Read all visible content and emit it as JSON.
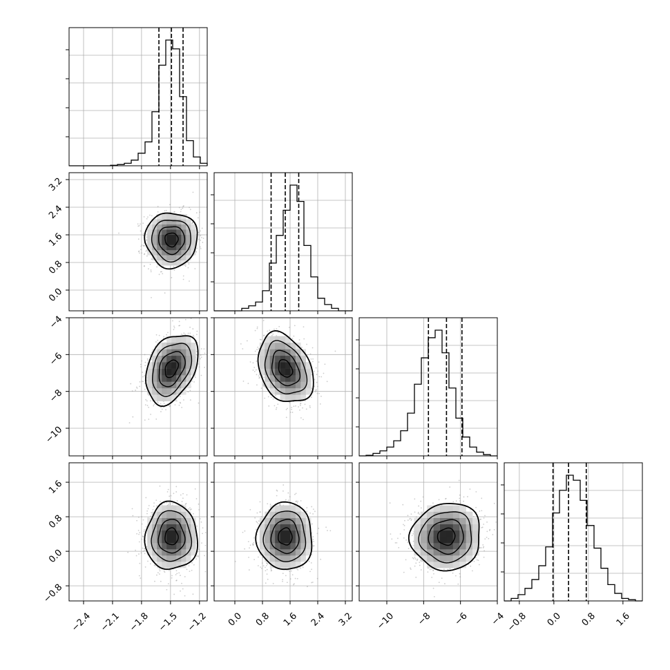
{
  "chart_data": {
    "type": "corner",
    "grid": true,
    "parameters": [
      {
        "range": [
          -2.55,
          -1.12
        ],
        "ticks": [
          -2.4,
          -2.1,
          -1.8,
          -1.5,
          -1.2
        ],
        "tick_labels": [
          "−2.4",
          "−2.1",
          "−1.8",
          "−1.5",
          "−1.2"
        ],
        "quantiles": [
          -1.62,
          -1.49,
          -1.37
        ],
        "hist_edges_step": 0.0715,
        "hist": [
          0,
          0,
          0,
          0,
          0,
          0,
          0.004,
          0.01,
          0.02,
          0.045,
          0.1,
          0.19,
          0.43,
          0.8,
          1.0,
          0.93,
          0.55,
          0.2,
          0.07,
          0.02
        ]
      },
      {
        "range": [
          -0.6,
          3.4
        ],
        "ticks": [
          0.0,
          0.8,
          1.6,
          2.4,
          3.2
        ],
        "tick_labels": [
          "0.0",
          "0.8",
          "1.6",
          "2.4",
          "3.2"
        ],
        "quantiles": [
          1.05,
          1.46,
          1.85
        ],
        "hist_edges_step": 0.2,
        "hist": [
          0,
          0,
          0,
          0,
          0.02,
          0.04,
          0.07,
          0.16,
          0.38,
          0.6,
          0.8,
          1.0,
          0.87,
          0.52,
          0.27,
          0.1,
          0.05,
          0.02,
          0,
          0
        ]
      },
      {
        "range": [
          -11.5,
          -4
        ],
        "ticks": [
          -10,
          -8,
          -6,
          -4
        ],
        "tick_labels": [
          "−10",
          "−8",
          "−6",
          "−4"
        ],
        "quantiles": [
          -7.74,
          -6.76,
          -5.92
        ],
        "hist_edges_step": 0.375,
        "hist": [
          0,
          0.005,
          0.02,
          0.04,
          0.07,
          0.12,
          0.2,
          0.34,
          0.57,
          0.78,
          0.94,
          1.0,
          0.82,
          0.54,
          0.3,
          0.15,
          0.07,
          0.03,
          0.01,
          0
        ]
      },
      {
        "range": [
          -1.15,
          2.05
        ],
        "ticks": [
          -0.8,
          0.0,
          0.8,
          1.6
        ],
        "tick_labels": [
          "−0.8",
          "0.0",
          "0.8",
          "1.6"
        ],
        "quantiles": [
          -0.02,
          0.34,
          0.75
        ],
        "hist_edges_step": 0.16,
        "hist": [
          0,
          0.02,
          0.05,
          0.1,
          0.17,
          0.28,
          0.43,
          0.7,
          0.88,
          1.0,
          0.96,
          0.8,
          0.6,
          0.42,
          0.26,
          0.13,
          0.06,
          0.02,
          0.01,
          0
        ]
      }
    ],
    "pairs": [
      {
        "xi": 0,
        "yi": 1,
        "center": [
          -1.49,
          1.46
        ],
        "sd": [
          0.135,
          0.4
        ],
        "rho": 0.0
      },
      {
        "xi": 0,
        "yi": 2,
        "center": [
          -1.49,
          -6.76
        ],
        "sd": [
          0.135,
          0.95
        ],
        "rho": 0.35
      },
      {
        "xi": 1,
        "yi": 2,
        "center": [
          1.46,
          -6.76
        ],
        "sd": [
          0.4,
          0.95
        ],
        "rho": -0.3
      },
      {
        "xi": 0,
        "yi": 3,
        "center": [
          -1.49,
          0.34
        ],
        "sd": [
          0.135,
          0.39
        ],
        "rho": 0.0
      },
      {
        "xi": 1,
        "yi": 3,
        "center": [
          1.46,
          0.34
        ],
        "sd": [
          0.4,
          0.39
        ],
        "rho": 0.0
      },
      {
        "xi": 2,
        "yi": 3,
        "center": [
          -6.76,
          0.34
        ],
        "sd": [
          0.95,
          0.39
        ],
        "rho": 0.05
      }
    ],
    "contour_levels_sigma": [
      0.5,
      1.0,
      1.5,
      2.0
    ],
    "colors": {
      "line": "#000000",
      "grid": "#b0b0b0",
      "points": "#9a9a9a"
    }
  }
}
